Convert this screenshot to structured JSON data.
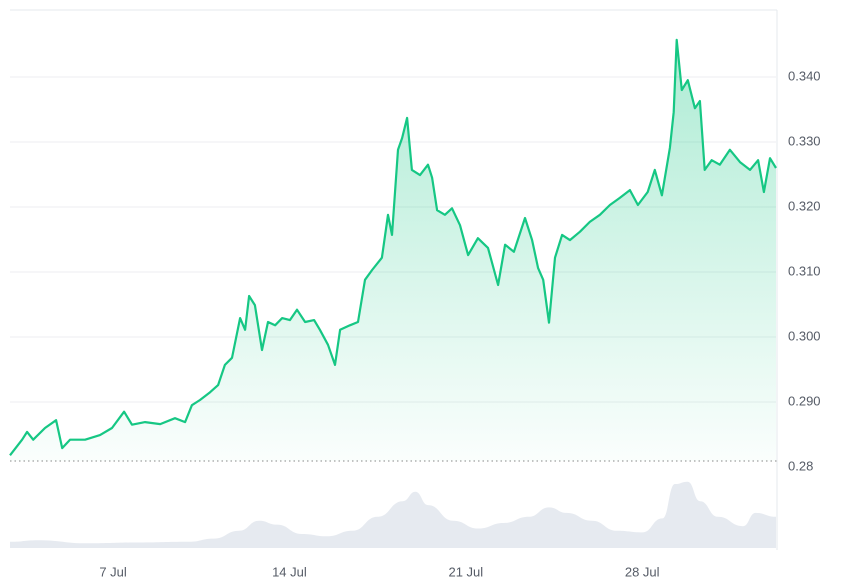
{
  "chart_data": [
    {
      "type": "line",
      "color": "#16c784",
      "x": [
        2.91,
        3.39,
        3.59,
        3.83,
        4.3,
        4.74,
        4.98,
        5.29,
        5.89,
        6.48,
        6.96,
        7.44,
        7.75,
        8.27,
        8.87,
        9.46,
        9.86,
        10.13,
        10.45,
        10.85,
        11.17,
        11.44,
        11.72,
        12.04,
        12.24,
        12.4,
        12.63,
        12.91,
        13.15,
        13.43,
        13.71,
        14.02,
        14.3,
        14.62,
        14.98,
        15.21,
        15.53,
        15.81,
        16.01,
        16.4,
        16.72,
        17.0,
        17.28,
        17.67,
        17.91,
        18.07,
        18.31,
        18.47,
        18.67,
        18.86,
        19.18,
        19.5,
        19.66,
        19.86,
        20.17,
        20.45,
        20.77,
        21.09,
        21.48,
        21.88,
        22.28,
        22.56,
        22.91,
        23.35,
        23.63,
        23.87,
        24.07,
        24.3,
        24.54,
        24.82,
        25.13,
        25.53,
        25.92,
        26.32,
        26.72,
        27.11,
        27.51,
        27.83,
        28.22,
        28.5,
        28.78,
        29.1,
        29.25,
        29.37,
        29.57,
        29.81,
        30.09,
        30.29,
        30.48,
        30.76,
        31.08,
        31.48,
        31.88,
        32.28,
        32.6,
        32.83,
        33.07,
        33.31
      ],
      "values": [
        0.2818,
        0.2842,
        0.2854,
        0.2842,
        0.286,
        0.2872,
        0.2829,
        0.2842,
        0.2842,
        0.2849,
        0.286,
        0.2885,
        0.2865,
        0.2869,
        0.2866,
        0.2875,
        0.2869,
        0.2895,
        0.2903,
        0.2915,
        0.2926,
        0.2957,
        0.2968,
        0.3029,
        0.3011,
        0.3063,
        0.3049,
        0.298,
        0.3023,
        0.3018,
        0.3029,
        0.3026,
        0.3042,
        0.3023,
        0.3026,
        0.3011,
        0.2988,
        0.2957,
        0.3011,
        0.3018,
        0.3023,
        0.3088,
        0.3103,
        0.3122,
        0.3188,
        0.3157,
        0.3288,
        0.3306,
        0.3337,
        0.3257,
        0.3249,
        0.3265,
        0.3245,
        0.3195,
        0.3188,
        0.3198,
        0.3172,
        0.3126,
        0.3152,
        0.3137,
        0.308,
        0.3142,
        0.3131,
        0.3183,
        0.3149,
        0.3106,
        0.3088,
        0.3022,
        0.3122,
        0.3157,
        0.3149,
        0.3162,
        0.3177,
        0.3188,
        0.3203,
        0.3214,
        0.3226,
        0.3203,
        0.3223,
        0.3257,
        0.3218,
        0.3291,
        0.3346,
        0.3457,
        0.338,
        0.3395,
        0.3352,
        0.3363,
        0.3257,
        0.3272,
        0.3265,
        0.3288,
        0.3269,
        0.3257,
        0.3272,
        0.3223,
        0.3275,
        0.326
      ],
      "xlim": [
        2.91,
        33.31
      ],
      "xticks": [
        {
          "value": 7,
          "label": "7 Jul"
        },
        {
          "value": 14,
          "label": "14 Jul"
        },
        {
          "value": 21,
          "label": "21 Jul"
        },
        {
          "value": 28,
          "label": "28 Jul"
        }
      ],
      "ylim": [
        0.28,
        0.3503
      ],
      "yticks": [
        0.28,
        {
          "value": 0.29,
          "label": "0.290"
        },
        {
          "value": 0.3,
          "label": "0.300"
        },
        {
          "value": 0.31,
          "label": "0.310"
        },
        {
          "value": 0.32,
          "label": "0.320"
        },
        {
          "value": 0.33,
          "label": "0.330"
        },
        {
          "value": 0.34,
          "label": "0.340"
        }
      ],
      "grid": true
    },
    {
      "type": "area",
      "color": "#e6eaf0",
      "x": [
        2.91,
        4,
        6,
        8,
        10,
        11,
        12,
        12.8,
        13.5,
        14.5,
        15.5,
        16.5,
        17.5,
        18.5,
        19,
        19.5,
        20.5,
        21.5,
        22.5,
        23.5,
        24.3,
        25,
        26,
        27,
        28,
        28.8,
        29.3,
        29.8,
        30.3,
        31,
        32,
        32.5,
        33.31
      ],
      "values": [
        8,
        10,
        6,
        7,
        8,
        12,
        22,
        35,
        30,
        18,
        15,
        22,
        40,
        60,
        72,
        55,
        35,
        25,
        32,
        40,
        52,
        45,
        35,
        22,
        20,
        38,
        82,
        85,
        60,
        40,
        28,
        45,
        40
      ],
      "xlim": [
        2.91,
        33.31
      ],
      "ylim": [
        0,
        100
      ]
    }
  ]
}
